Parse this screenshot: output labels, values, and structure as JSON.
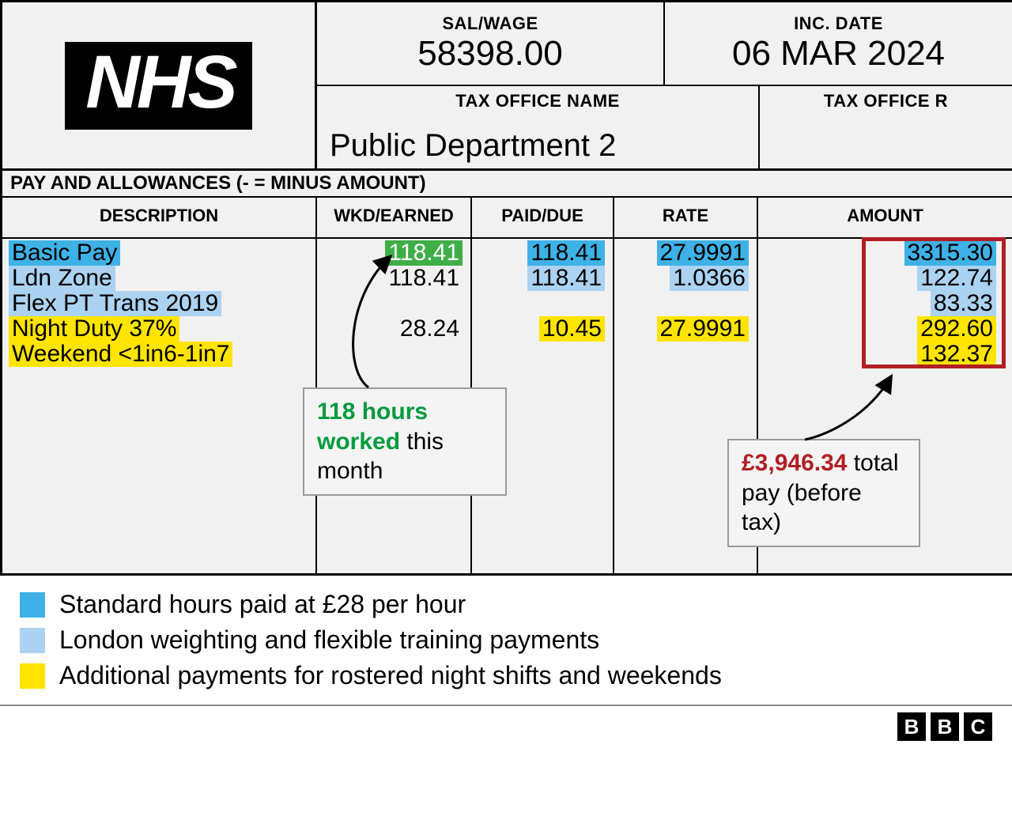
{
  "colors": {
    "standard": "#3eb1e6",
    "light": "#abd2f0",
    "yellow": "#ffe400",
    "green": "#3fae49",
    "red_outline": "#b11f24",
    "callout_border": "#9a9a9a",
    "page_bg": "#f1f1f1"
  },
  "header": {
    "logo_text": "NHS",
    "sal_wage": {
      "label": "SAL/WAGE",
      "value": "58398.00"
    },
    "inc_date": {
      "label": "INC. DATE",
      "value": "06 MAR 2024"
    },
    "tax_office_name": {
      "label": "TAX OFFICE NAME",
      "value": "Public Department 2"
    },
    "tax_office_ref": {
      "label": "TAX OFFICE R"
    }
  },
  "section_title": "PAY AND ALLOWANCES (- = MINUS AMOUNT)",
  "columns": {
    "description": "DESCRIPTION",
    "wkd_earned": "WKD/EARNED",
    "paid_due": "PAID/DUE",
    "rate": "RATE",
    "amount": "AMOUNT"
  },
  "rows": [
    {
      "description": "Basic Pay",
      "desc_hl": "std",
      "wkd": "118.41",
      "wkd_hl": "green",
      "paid": "118.41",
      "paid_hl": "std",
      "rate": "27.9991",
      "rate_hl": "std",
      "amount": "3315.30",
      "amount_hl": "std"
    },
    {
      "description": "Ldn Zone",
      "desc_hl": "light",
      "wkd": "118.41",
      "wkd_hl": null,
      "paid": "118.41",
      "paid_hl": "light",
      "rate": "1.0366",
      "rate_hl": "light",
      "amount": "122.74",
      "amount_hl": "light"
    },
    {
      "description": "Flex PT Trans 2019",
      "desc_hl": "light",
      "wkd": "",
      "wkd_hl": null,
      "paid": "",
      "paid_hl": null,
      "rate": "",
      "rate_hl": null,
      "amount": "83.33",
      "amount_hl": "light"
    },
    {
      "description": "Night Duty 37%",
      "desc_hl": "yellow",
      "wkd": "28.24",
      "wkd_hl": null,
      "paid": "10.45",
      "paid_hl": "yellow",
      "rate": "27.9991",
      "rate_hl": "yellow",
      "amount": "292.60",
      "amount_hl": "yellow"
    },
    {
      "description": "Weekend <1in6-1in7",
      "desc_hl": "yellow",
      "wkd": "",
      "wkd_hl": null,
      "paid": "",
      "paid_hl": null,
      "rate": "",
      "rate_hl": null,
      "amount": "132.37",
      "amount_hl": "yellow"
    }
  ],
  "callouts": {
    "hours": {
      "emph": "118 hours worked",
      "rest": "  this month"
    },
    "total": {
      "emph": "£3,946.34",
      "rest": " total pay (before tax)"
    }
  },
  "legend": [
    {
      "swatch": "std",
      "text": "Standard hours paid at £28 per hour"
    },
    {
      "swatch": "light",
      "text": "London weighting and flexible training payments"
    },
    {
      "swatch": "yellow",
      "text": "Additional payments for rostered night shifts and weekends"
    }
  ],
  "footer": {
    "bbc": [
      "B",
      "B",
      "C"
    ]
  }
}
